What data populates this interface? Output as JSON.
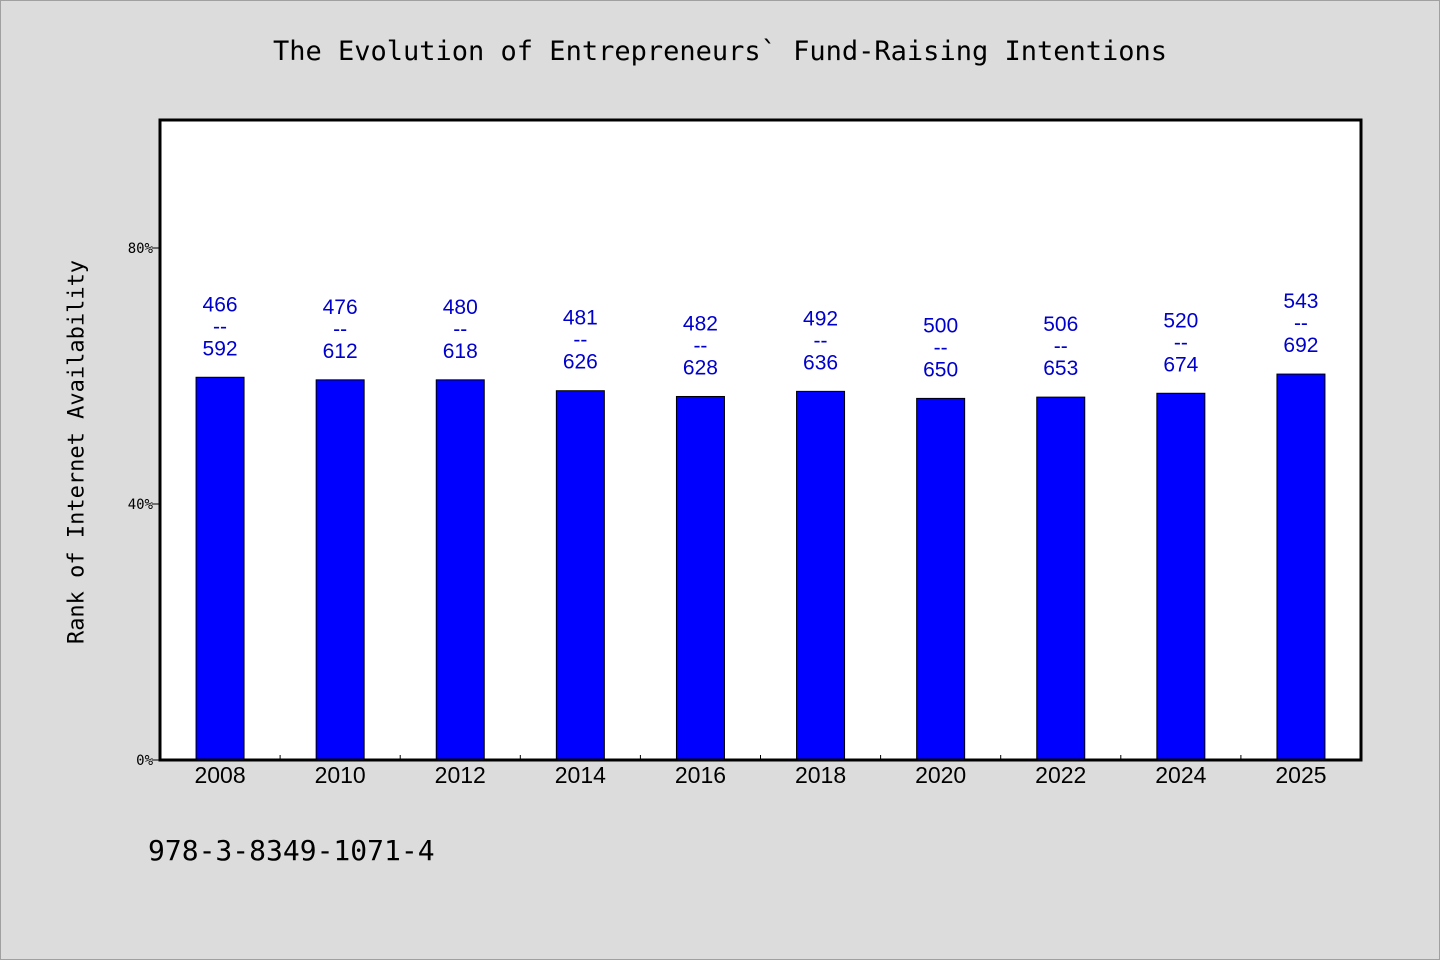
{
  "chart_data": {
    "type": "bar",
    "title": "The Evolution of Entrepreneurs` Fund-Raising Intentions",
    "xlabel": "",
    "ylabel": "Rank of Internet Availability",
    "ylim": [
      0,
      100
    ],
    "y_ticks": [
      {
        "value": 0,
        "label": "0%"
      },
      {
        "value": 40,
        "label": "40%"
      },
      {
        "value": 80,
        "label": "80%"
      }
    ],
    "categories": [
      "2008",
      "2010",
      "2012",
      "2014",
      "2016",
      "2018",
      "2020",
      "2022",
      "2024",
      "2025"
    ],
    "values": [
      59.8,
      59.4,
      59.4,
      57.7,
      56.8,
      57.6,
      56.5,
      56.7,
      57.3,
      60.3
    ],
    "data_labels": [
      {
        "top": "466",
        "sep": "--",
        "bottom": "592"
      },
      {
        "top": "476",
        "sep": "--",
        "bottom": "612"
      },
      {
        "top": "480",
        "sep": "--",
        "bottom": "618"
      },
      {
        "top": "481",
        "sep": "--",
        "bottom": "626"
      },
      {
        "top": "482",
        "sep": "--",
        "bottom": "628"
      },
      {
        "top": "492",
        "sep": "--",
        "bottom": "636"
      },
      {
        "top": "500",
        "sep": "--",
        "bottom": "650"
      },
      {
        "top": "506",
        "sep": "--",
        "bottom": "653"
      },
      {
        "top": "520",
        "sep": "--",
        "bottom": "674"
      },
      {
        "top": "543",
        "sep": "--",
        "bottom": "692"
      }
    ],
    "grid": false,
    "legend": "none",
    "colors": {
      "bar": "#0000ff",
      "data_label": "#0000cc",
      "background": "#dcdcdc",
      "plot_background": "#ffffff"
    }
  },
  "footer": {
    "code": "978-3-8349-1071-4"
  }
}
